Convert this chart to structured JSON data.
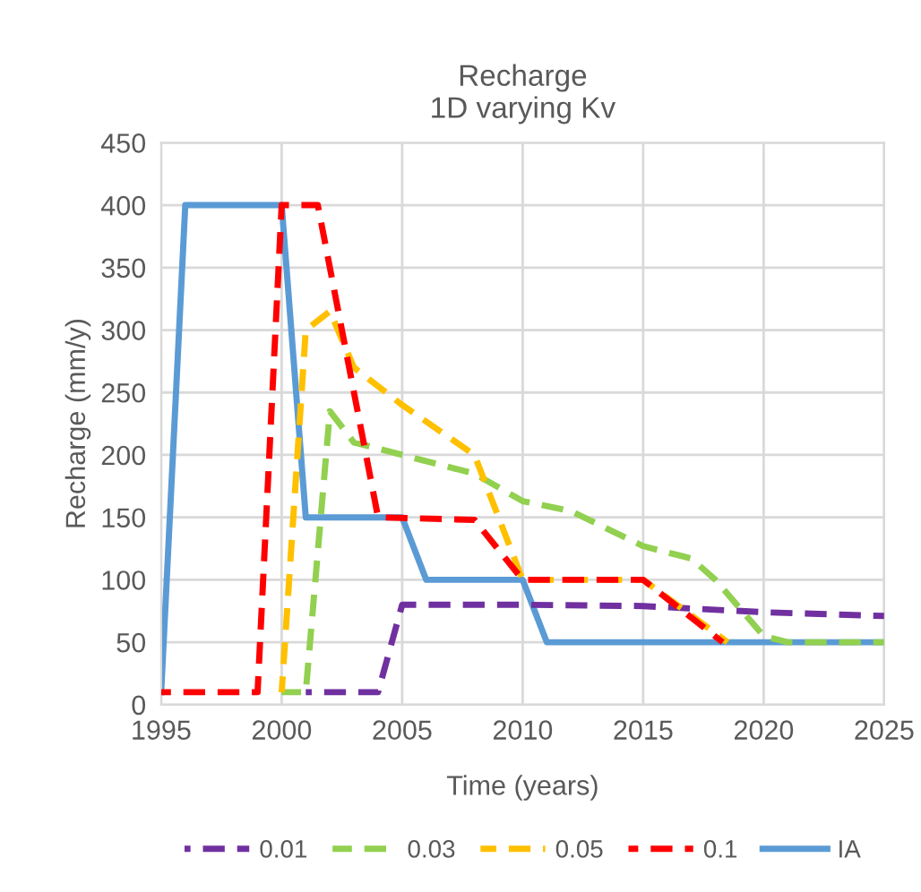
{
  "chart_data": {
    "type": "line",
    "title": "Recharge\n1D varying Kv",
    "xlabel": "Time (years)",
    "ylabel": "Recharge (mm/y)",
    "xlim": [
      1995,
      2025
    ],
    "xticks": [
      1995,
      2000,
      2005,
      2010,
      2015,
      2020,
      2025
    ],
    "ylim": [
      0,
      450
    ],
    "yticks": [
      0,
      50,
      100,
      150,
      200,
      250,
      300,
      350,
      400,
      450
    ],
    "grid": true,
    "legend": "bottom",
    "series": [
      {
        "name": "0.01",
        "color": "#7030a0",
        "line_style": "dashed",
        "x": [
          2001,
          2004,
          2005,
          2010,
          2015,
          2020,
          2025
        ],
        "values": [
          10,
          10,
          80,
          80,
          79,
          74,
          71
        ]
      },
      {
        "name": "0.03",
        "color": "#92d050",
        "line_style": "dashed",
        "x": [
          2000,
          2001,
          2002,
          2003,
          2005,
          2008,
          2010,
          2012,
          2015,
          2017,
          2018,
          2020,
          2021,
          2025
        ],
        "values": [
          10,
          10,
          235,
          210,
          200,
          185,
          163,
          155,
          127,
          117,
          100,
          55,
          50,
          50
        ]
      },
      {
        "name": "0.05",
        "color": "#ffc000",
        "line_style": "dashed",
        "x": [
          2000,
          2001,
          2002,
          2003,
          2005,
          2008,
          2010,
          2015,
          2018.5
        ],
        "values": [
          10,
          300,
          315,
          270,
          240,
          200,
          100,
          100,
          50
        ]
      },
      {
        "name": "0.1",
        "color": "#ff0000",
        "line_style": "dashed",
        "x": [
          1995,
          1999,
          2000,
          2001.5,
          2004,
          2008,
          2010,
          2015,
          2018.3
        ],
        "values": [
          10,
          10,
          400,
          400,
          150,
          148,
          100,
          100,
          50
        ]
      },
      {
        "name": "IA",
        "color": "#5b9bd5",
        "line_style": "solid",
        "x": [
          1995,
          1996,
          2000,
          2001,
          2005,
          2006,
          2010,
          2011,
          2025
        ],
        "values": [
          10,
          400,
          400,
          150,
          150,
          100,
          100,
          50,
          50
        ]
      }
    ]
  }
}
